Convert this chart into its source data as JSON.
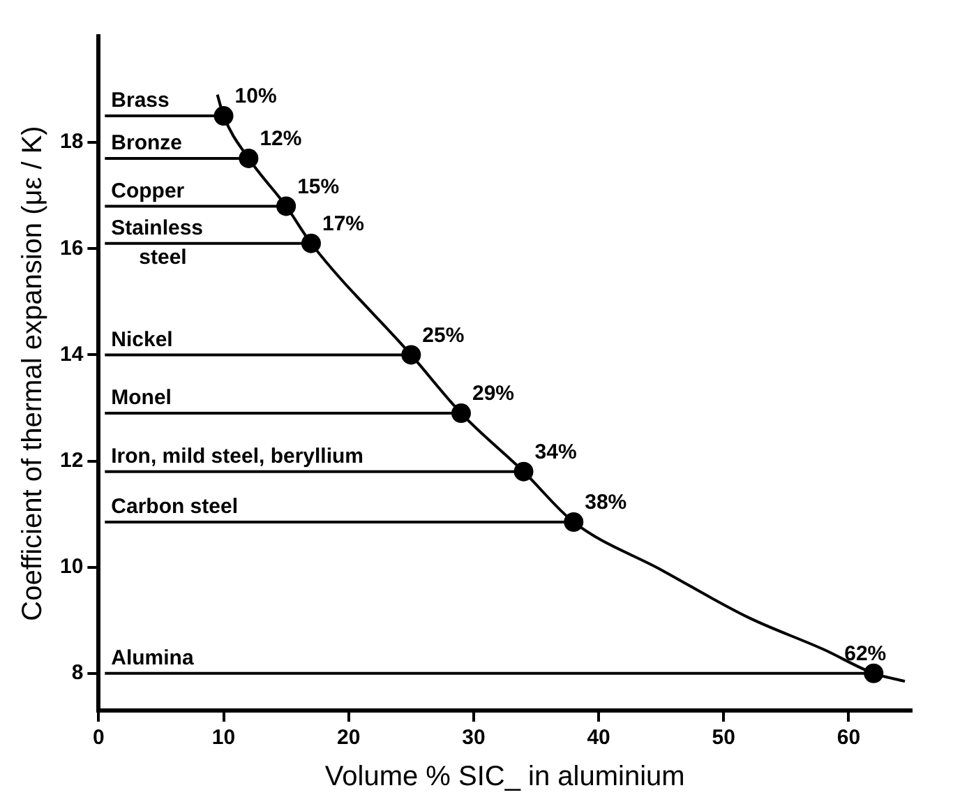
{
  "chart_data": {
    "type": "scatter",
    "xlabel": "Volume % SIC_ in aluminium",
    "ylabel": "Coefficient of thermal expansion (με / K)",
    "xlim": [
      0,
      65
    ],
    "ylim": [
      7.3,
      20
    ],
    "xticks": [
      0,
      10,
      20,
      30,
      40,
      50,
      60
    ],
    "yticks": [
      8,
      10,
      12,
      14,
      16,
      18
    ],
    "legend": false,
    "series": [
      {
        "type": "line",
        "color": "#000000",
        "marker": "none",
        "x": [
          9.5,
          10,
          12,
          15,
          17,
          25,
          29,
          34,
          38,
          45,
          52,
          58,
          62,
          64.5
        ],
        "values": [
          18.9,
          18.5,
          17.7,
          16.8,
          16.1,
          14.0,
          12.9,
          11.8,
          10.85,
          9.95,
          9.05,
          8.45,
          8.0,
          7.85
        ]
      },
      {
        "type": "line",
        "color": "#000000",
        "marker": "none",
        "x": [
          0.5,
          10
        ],
        "values": [
          18.5,
          18.5
        ]
      },
      {
        "type": "line",
        "color": "#000000",
        "marker": "none",
        "x": [
          0.5,
          12
        ],
        "values": [
          17.7,
          17.7
        ]
      },
      {
        "type": "line",
        "color": "#000000",
        "marker": "none",
        "x": [
          0.5,
          15
        ],
        "values": [
          16.8,
          16.8
        ]
      },
      {
        "type": "line",
        "color": "#000000",
        "marker": "none",
        "x": [
          0.5,
          17
        ],
        "values": [
          16.1,
          16.1
        ]
      },
      {
        "type": "line",
        "color": "#000000",
        "marker": "none",
        "x": [
          0.5,
          25
        ],
        "values": [
          14.0,
          14.0
        ]
      },
      {
        "type": "line",
        "color": "#000000",
        "marker": "none",
        "x": [
          0.5,
          29
        ],
        "values": [
          12.9,
          12.9
        ]
      },
      {
        "type": "line",
        "color": "#000000",
        "marker": "none",
        "x": [
          0.5,
          34
        ],
        "values": [
          11.8,
          11.8
        ]
      },
      {
        "type": "line",
        "color": "#000000",
        "marker": "none",
        "x": [
          0.5,
          38
        ],
        "values": [
          10.85,
          10.85
        ]
      },
      {
        "type": "line",
        "color": "#000000",
        "marker": "none",
        "x": [
          0.5,
          62
        ],
        "values": [
          8.0,
          8.0
        ]
      },
      {
        "color": "#000000",
        "marker": "circle",
        "x": [
          10,
          12,
          15,
          17,
          25,
          29,
          34,
          38,
          62
        ],
        "values": [
          18.5,
          17.7,
          16.8,
          16.1,
          14.0,
          12.9,
          11.8,
          10.85,
          8.0
        ]
      }
    ],
    "annotations": [
      {
        "text": "Brass",
        "x": 1,
        "y": 18.5
      },
      {
        "text": "Bronze",
        "x": 1,
        "y": 17.7
      },
      {
        "text": "Copper",
        "x": 1,
        "y": 16.8
      },
      {
        "text": "Stainless\nsteel",
        "x": 1,
        "y": 16.1
      },
      {
        "text": "Nickel",
        "x": 1,
        "y": 14.0
      },
      {
        "text": "Monel",
        "x": 1,
        "y": 12.9
      },
      {
        "text": "Iron, mild steel, beryllium",
        "x": 1,
        "y": 11.8
      },
      {
        "text": "Carbon steel",
        "x": 1,
        "y": 10.85
      },
      {
        "text": "Alumina",
        "x": 1,
        "y": 8.0
      },
      {
        "text": "10%",
        "x": 10,
        "y": 18.5
      },
      {
        "text": "12%",
        "x": 12,
        "y": 17.7
      },
      {
        "text": "15%",
        "x": 15,
        "y": 16.8
      },
      {
        "text": "17%",
        "x": 17,
        "y": 16.1
      },
      {
        "text": "25%",
        "x": 25,
        "y": 14.0
      },
      {
        "text": "29%",
        "x": 29,
        "y": 12.9
      },
      {
        "text": "34%",
        "x": 34,
        "y": 11.8
      },
      {
        "text": "38%",
        "x": 38,
        "y": 10.85
      },
      {
        "text": "62%",
        "x": 62,
        "y": 8.0
      }
    ]
  }
}
